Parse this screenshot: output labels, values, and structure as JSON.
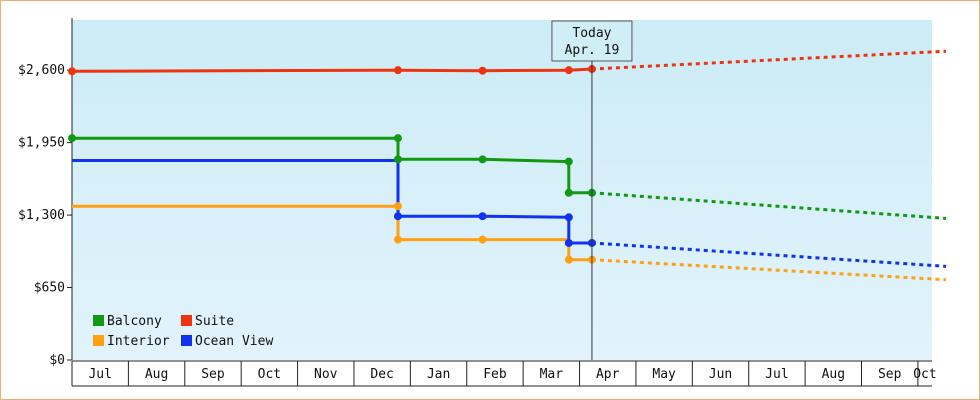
{
  "chart_data": {
    "type": "line",
    "title": "",
    "xlabel": "",
    "ylabel": "",
    "x_ticks": [
      "Jul",
      "Aug",
      "Sep",
      "Oct",
      "Nov",
      "Dec",
      "Jan",
      "Feb",
      "Mar",
      "Apr",
      "May",
      "Jun",
      "Jul",
      "Aug",
      "Sep",
      "Oct"
    ],
    "y_ticks": [
      "$0",
      "$650",
      "$1,300",
      "$1,950",
      "$2,600"
    ],
    "ylim": [
      0,
      3050
    ],
    "grid": false,
    "legend_position": "bottom-left",
    "today_marker": {
      "line1": "Today",
      "line2": "Apr. 19",
      "x": 9.22
    },
    "series": [
      {
        "name": "Balcony",
        "color": "#119911",
        "step_points": [
          [
            0,
            1990
          ],
          [
            5.78,
            1990
          ],
          [
            5.78,
            1800
          ],
          [
            7.28,
            1800
          ],
          [
            8.81,
            1780
          ],
          [
            8.81,
            1500
          ],
          [
            9.22,
            1500
          ]
        ],
        "markers": [
          [
            0,
            1990
          ],
          [
            5.78,
            1990
          ],
          [
            5.78,
            1800
          ],
          [
            7.28,
            1800
          ],
          [
            8.81,
            1780
          ],
          [
            8.81,
            1500
          ],
          [
            9.22,
            1500
          ]
        ],
        "forecast": [
          [
            9.22,
            1500
          ],
          [
            15.5,
            1270
          ]
        ]
      },
      {
        "name": "Suite",
        "color": "#ee3311",
        "step_points": [
          [
            0,
            2590
          ],
          [
            5.78,
            2600
          ],
          [
            7.28,
            2595
          ],
          [
            8.81,
            2600
          ],
          [
            9.22,
            2610
          ]
        ],
        "markers": [
          [
            0,
            2590
          ],
          [
            5.78,
            2600
          ],
          [
            7.28,
            2595
          ],
          [
            8.81,
            2600
          ],
          [
            9.22,
            2610
          ]
        ],
        "forecast": [
          [
            9.22,
            2610
          ],
          [
            15.5,
            2770
          ]
        ]
      },
      {
        "name": "Interior",
        "color": "#ffa010",
        "step_points": [
          [
            0,
            1380
          ],
          [
            5.78,
            1380
          ],
          [
            5.78,
            1080
          ],
          [
            7.28,
            1080
          ],
          [
            8.81,
            1080
          ],
          [
            8.81,
            900
          ],
          [
            9.22,
            900
          ]
        ],
        "markers": [
          [
            5.78,
            1380
          ],
          [
            5.78,
            1080
          ],
          [
            7.28,
            1080
          ],
          [
            8.81,
            900
          ],
          [
            9.22,
            900
          ]
        ],
        "forecast": [
          [
            9.22,
            900
          ],
          [
            15.5,
            720
          ]
        ]
      },
      {
        "name": "Ocean View",
        "color": "#1133ee",
        "step_points": [
          [
            0,
            1790
          ],
          [
            5.78,
            1790
          ],
          [
            5.78,
            1290
          ],
          [
            7.28,
            1290
          ],
          [
            8.81,
            1280
          ],
          [
            8.81,
            1050
          ],
          [
            9.22,
            1050
          ]
        ],
        "markers": [
          [
            5.78,
            1290
          ],
          [
            7.28,
            1290
          ],
          [
            8.81,
            1280
          ],
          [
            8.81,
            1050
          ],
          [
            9.22,
            1050
          ]
        ],
        "forecast": [
          [
            9.22,
            1050
          ],
          [
            15.5,
            840
          ]
        ]
      }
    ],
    "legend": [
      {
        "label": "Balcony",
        "color": "#119911"
      },
      {
        "label": "Suite",
        "color": "#ee3311"
      },
      {
        "label": "Interior",
        "color": "#ffa010"
      },
      {
        "label": "Ocean View",
        "color": "#1133ee"
      }
    ]
  }
}
